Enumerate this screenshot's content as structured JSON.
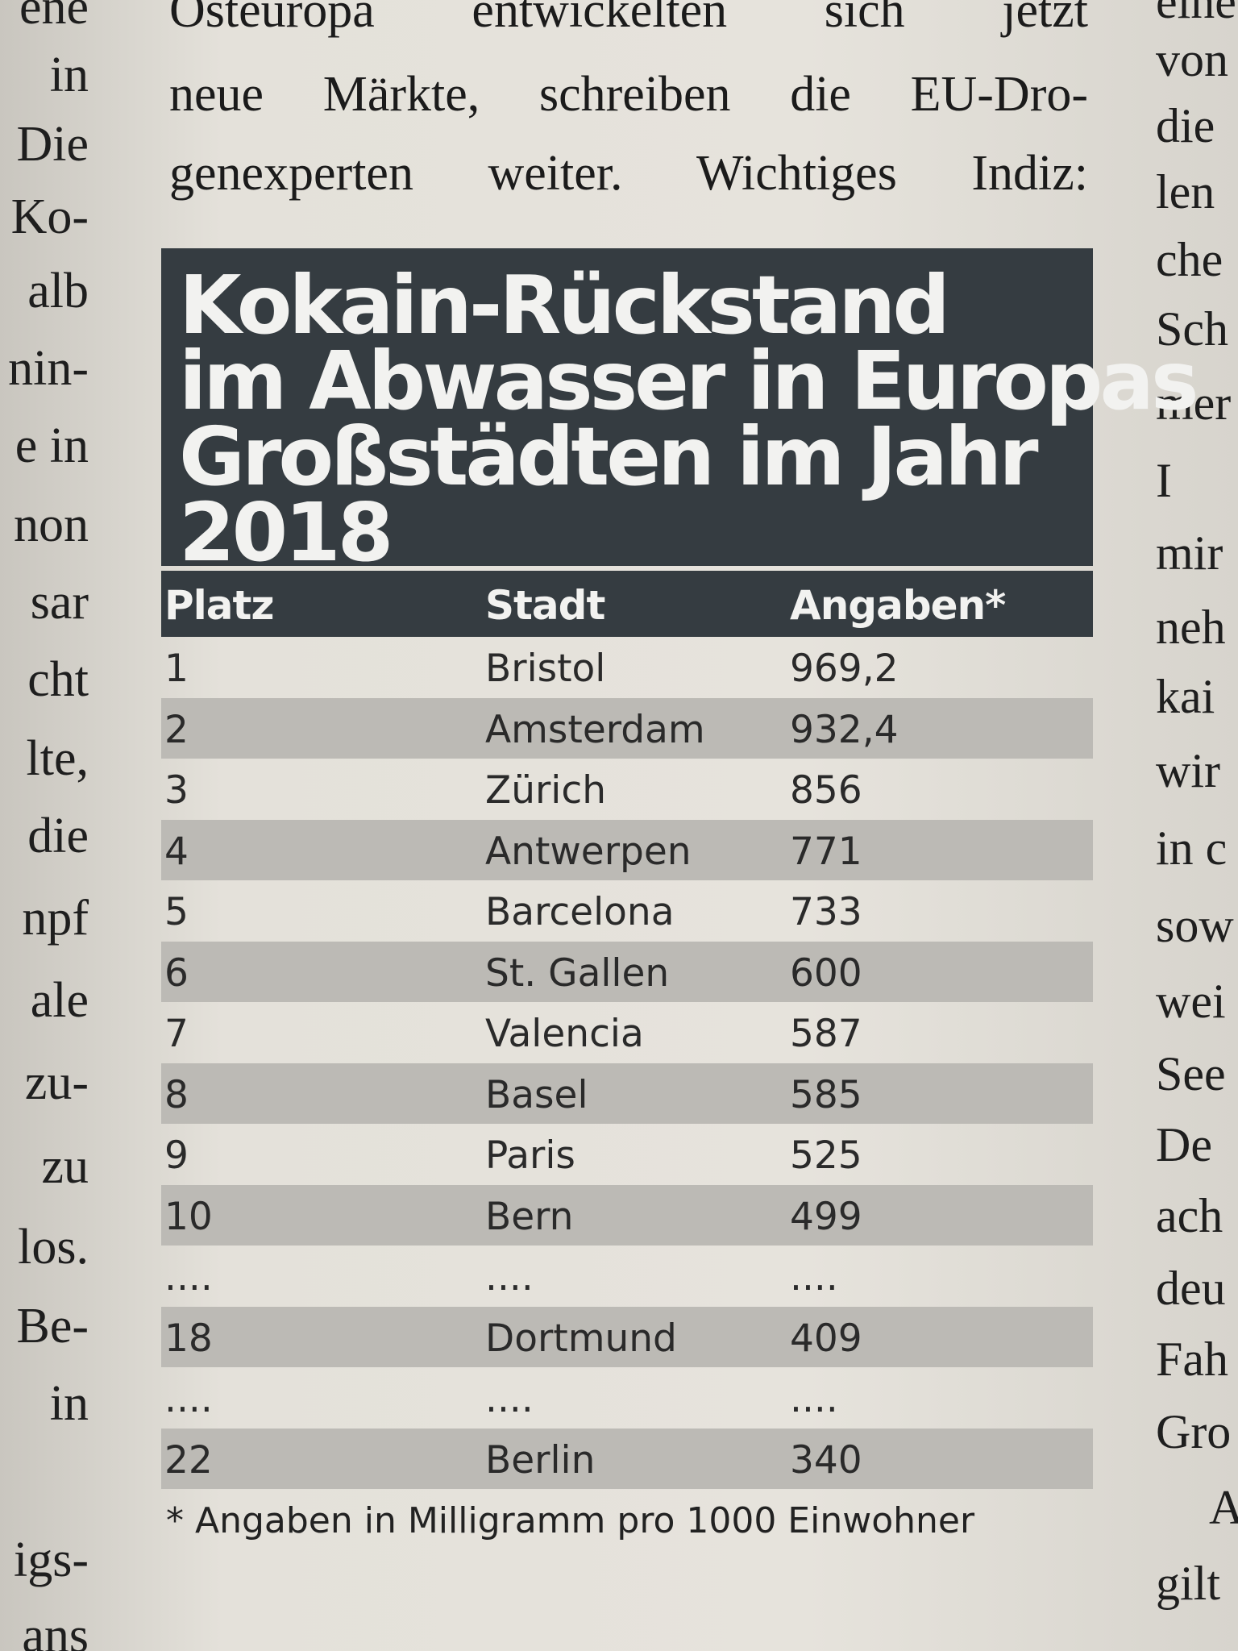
{
  "top_paragraph": [
    "Osteuropa entwickelten sich jetzt",
    "neue Märkte, schreiben die EU-Dro-",
    "genexperten weiter. Wichtiges Indiz:"
  ],
  "left_column": [
    "ene",
    "in",
    "Die",
    "Ko-",
    "alb",
    "nin-",
    "e in",
    "non",
    "sar",
    "cht",
    "lte,",
    "die",
    "npf",
    "ale",
    "zu-",
    "zu",
    "los.",
    "Be-",
    "in",
    "igs-",
    "ans"
  ],
  "right_column": [
    "eine",
    "von",
    "die",
    "len",
    "che",
    "Sch",
    "mer",
    "I",
    "mir",
    "neh",
    "kai",
    "wir",
    "in c",
    "sow",
    "wei",
    "See",
    "De",
    "ach",
    "deu",
    "Fah",
    "Gro",
    "A",
    "gilt"
  ],
  "infobox": {
    "title_lines": [
      "Kokain-Rückstand",
      "im Abwasser in Europas",
      "Großstädten im Jahr",
      "2018"
    ],
    "columns": [
      "Platz",
      "Stadt",
      "Angaben*"
    ],
    "rows": [
      [
        "1",
        "Bristol",
        "969,2"
      ],
      [
        "2",
        "Amsterdam",
        "932,4"
      ],
      [
        "3",
        "Zürich",
        "856"
      ],
      [
        "4",
        "Antwerpen",
        "771"
      ],
      [
        "5",
        "Barcelona",
        "733"
      ],
      [
        "6",
        "St. Gallen",
        "600"
      ],
      [
        "7",
        "Valencia",
        "587"
      ],
      [
        "8",
        "Basel",
        "585"
      ],
      [
        "9",
        "Paris",
        "525"
      ],
      [
        "10",
        "Bern",
        "499"
      ],
      [
        "....",
        "....",
        "...."
      ],
      [
        "18",
        "Dortmund",
        "409"
      ],
      [
        "....",
        "....",
        "...."
      ],
      [
        "22",
        "Berlin",
        "340"
      ]
    ],
    "footnote": "* Angaben in Milligramm pro 1000 Einwohner"
  }
}
